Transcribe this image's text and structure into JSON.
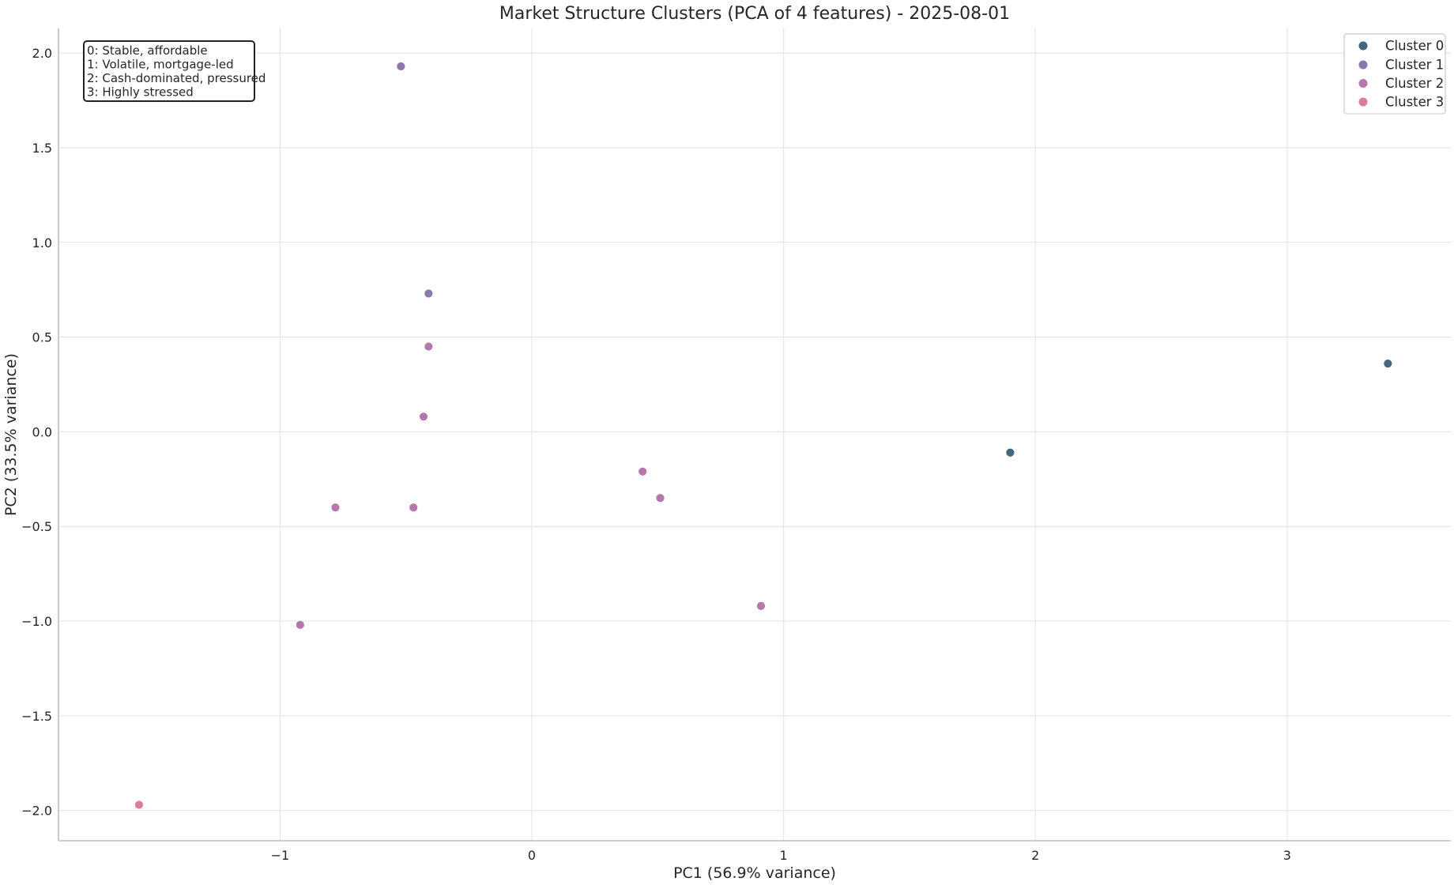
{
  "chart_data": {
    "type": "scatter",
    "title": "Market Structure Clusters (PCA of 4 features) - 2025-08-01",
    "xlabel": "PC1 (56.9% variance)",
    "ylabel": "PC2 (33.5% variance)",
    "xlim": [
      -1.88,
      3.65
    ],
    "ylim": [
      -2.16,
      2.13
    ],
    "xticks": [
      -1,
      0,
      1,
      2,
      3
    ],
    "xtick_labels": [
      "−1",
      "0",
      "1",
      "2",
      "3"
    ],
    "yticks": [
      2.0,
      1.5,
      1.0,
      0.5,
      0.0,
      -0.5,
      -1.0,
      -1.5,
      -2.0
    ],
    "ytick_labels": [
      "2.0",
      "1.5",
      "1.0",
      "0.5",
      "0.0",
      "−0.5",
      "−1.0",
      "−1.5",
      "−2.0"
    ],
    "grid": true,
    "legend_position": "top-right",
    "series": [
      {
        "name": "Cluster 0",
        "color": "#41687f",
        "points": [
          [
            1.9,
            -0.11
          ],
          [
            3.4,
            0.36
          ]
        ]
      },
      {
        "name": "Cluster 1",
        "color": "#8b78a8",
        "points": [
          [
            -0.52,
            1.93
          ],
          [
            -0.41,
            0.73
          ]
        ]
      },
      {
        "name": "Cluster 2",
        "color": "#b678aa",
        "points": [
          [
            -0.41,
            0.45
          ],
          [
            -0.43,
            0.08
          ],
          [
            -0.78,
            -0.4
          ],
          [
            -0.47,
            -0.4
          ],
          [
            0.44,
            -0.21
          ],
          [
            0.51,
            -0.35
          ],
          [
            0.91,
            -0.92
          ],
          [
            -0.92,
            -1.02
          ]
        ]
      },
      {
        "name": "Cluster 3",
        "color": "#dc7ba2",
        "points": [
          [
            -1.56,
            -1.97
          ]
        ]
      }
    ],
    "annotation": {
      "lines": [
        "0: Stable, affordable",
        "1: Volatile, mortgage-led",
        "2: Cash-dominated, pressured",
        "3: Highly stressed"
      ]
    }
  }
}
